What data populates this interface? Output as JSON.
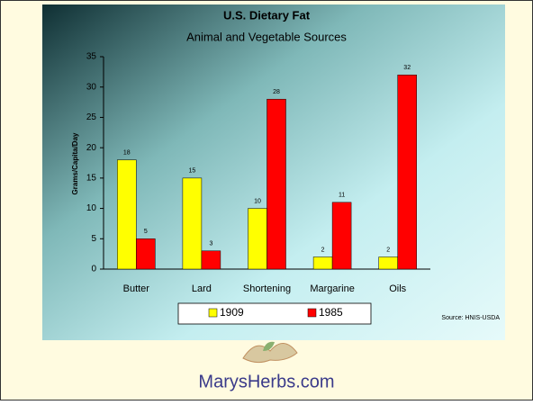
{
  "chart_data": {
    "type": "bar",
    "title": "U.S. Dietary Fat",
    "subtitle": "Animal and Vegetable Sources",
    "y_label": "Grams/Capita/Day",
    "categories": [
      "Butter",
      "Lard",
      "Shortening",
      "Margarine",
      "Oils"
    ],
    "series": [
      {
        "name": "1909",
        "color": "#ffff00",
        "values": [
          18,
          15,
          10,
          2,
          2
        ]
      },
      {
        "name": "1985",
        "color": "#ff0000",
        "values": [
          5,
          3,
          28,
          11,
          32
        ]
      }
    ],
    "ylim": [
      0,
      35
    ],
    "yticks": [
      0,
      5,
      10,
      15,
      20,
      25,
      30,
      35
    ],
    "grid": false,
    "legend": "bottom",
    "source": "Source: HNIS-USDA"
  },
  "footer": {
    "text": "MarysHerbs.com"
  }
}
